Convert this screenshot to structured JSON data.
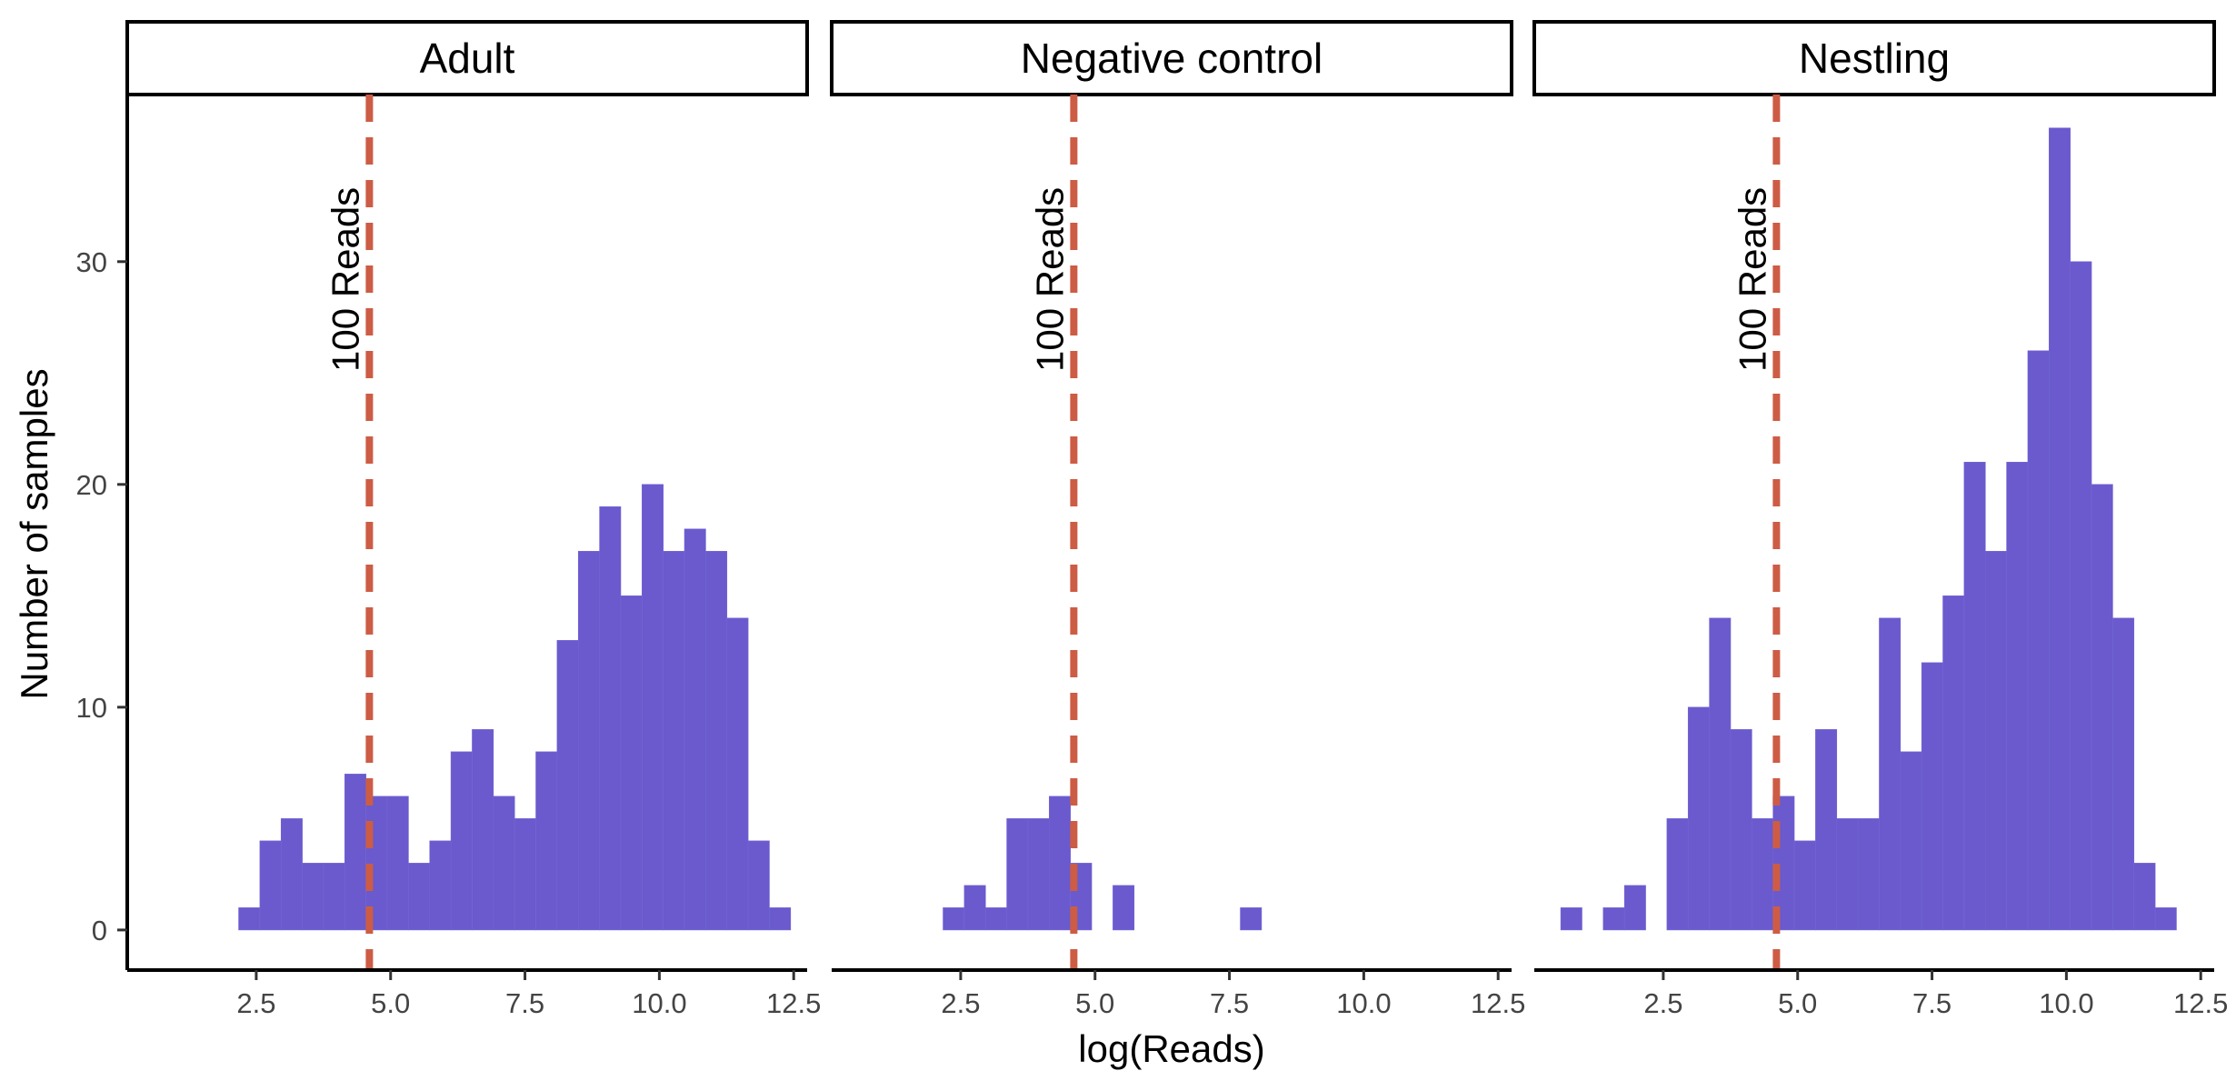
{
  "chart_data": {
    "type": "bar",
    "xlabel": "log(Reads)",
    "ylabel": "Number of samples",
    "xlim": [
      0.1,
      12.75
    ],
    "ylim": [
      -1.8,
      37.5
    ],
    "x_ticks": [
      "2.5",
      "5.0",
      "7.5",
      "10.0",
      "12.5"
    ],
    "y_ticks": [
      "0",
      "10",
      "20",
      "30"
    ],
    "bin_width": 0.395,
    "bar_color": "#6A5ACD",
    "threshold": {
      "x": 4.605,
      "label": "100 Reads",
      "color": "#CD5C45"
    },
    "legend": "none",
    "grid": false,
    "panels": [
      {
        "name": "Adult",
        "bins": [
          {
            "x": 2.37,
            "y": 1
          },
          {
            "x": 2.765,
            "y": 4
          },
          {
            "x": 3.16,
            "y": 5
          },
          {
            "x": 3.555,
            "y": 3
          },
          {
            "x": 3.95,
            "y": 3
          },
          {
            "x": 4.345,
            "y": 7
          },
          {
            "x": 4.74,
            "y": 6
          },
          {
            "x": 5.135,
            "y": 6
          },
          {
            "x": 5.53,
            "y": 3
          },
          {
            "x": 5.925,
            "y": 4
          },
          {
            "x": 6.32,
            "y": 8
          },
          {
            "x": 6.715,
            "y": 9
          },
          {
            "x": 7.11,
            "y": 6
          },
          {
            "x": 7.505,
            "y": 5
          },
          {
            "x": 7.9,
            "y": 8
          },
          {
            "x": 8.295,
            "y": 13
          },
          {
            "x": 8.69,
            "y": 17
          },
          {
            "x": 9.085,
            "y": 19
          },
          {
            "x": 9.48,
            "y": 15
          },
          {
            "x": 9.875,
            "y": 20
          },
          {
            "x": 10.27,
            "y": 17
          },
          {
            "x": 10.665,
            "y": 18
          },
          {
            "x": 11.06,
            "y": 17
          },
          {
            "x": 11.455,
            "y": 14
          },
          {
            "x": 11.85,
            "y": 4
          },
          {
            "x": 12.245,
            "y": 1
          }
        ]
      },
      {
        "name": "Negative control",
        "bins": [
          {
            "x": 2.37,
            "y": 1
          },
          {
            "x": 2.765,
            "y": 2
          },
          {
            "x": 3.16,
            "y": 1
          },
          {
            "x": 3.555,
            "y": 5
          },
          {
            "x": 3.95,
            "y": 5
          },
          {
            "x": 4.345,
            "y": 6
          },
          {
            "x": 4.74,
            "y": 3
          },
          {
            "x": 5.53,
            "y": 2
          },
          {
            "x": 7.9,
            "y": 1
          }
        ]
      },
      {
        "name": "Nestling",
        "bins": [
          {
            "x": 0.79,
            "y": 1
          },
          {
            "x": 1.58,
            "y": 1
          },
          {
            "x": 1.975,
            "y": 2
          },
          {
            "x": 2.765,
            "y": 5
          },
          {
            "x": 3.16,
            "y": 10
          },
          {
            "x": 3.555,
            "y": 14
          },
          {
            "x": 3.95,
            "y": 9
          },
          {
            "x": 4.345,
            "y": 5
          },
          {
            "x": 4.74,
            "y": 6
          },
          {
            "x": 5.135,
            "y": 4
          },
          {
            "x": 5.53,
            "y": 9
          },
          {
            "x": 5.925,
            "y": 5
          },
          {
            "x": 6.32,
            "y": 5
          },
          {
            "x": 6.715,
            "y": 14
          },
          {
            "x": 7.11,
            "y": 8
          },
          {
            "x": 7.505,
            "y": 12
          },
          {
            "x": 7.9,
            "y": 15
          },
          {
            "x": 8.295,
            "y": 21
          },
          {
            "x": 8.69,
            "y": 17
          },
          {
            "x": 9.085,
            "y": 21
          },
          {
            "x": 9.48,
            "y": 26
          },
          {
            "x": 9.875,
            "y": 36
          },
          {
            "x": 10.27,
            "y": 30
          },
          {
            "x": 10.665,
            "y": 20
          },
          {
            "x": 11.06,
            "y": 14
          },
          {
            "x": 11.455,
            "y": 3
          },
          {
            "x": 11.85,
            "y": 1
          }
        ]
      }
    ]
  }
}
